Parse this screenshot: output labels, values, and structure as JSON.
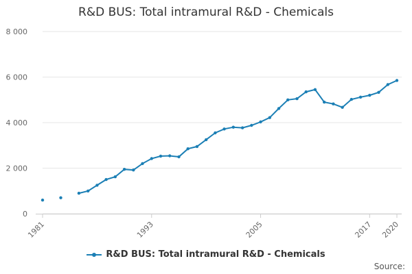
{
  "chart_data": {
    "type": "line",
    "title": "R&D BUS: Total intramural R&D - Chemicals",
    "xlabel": "",
    "ylabel": "",
    "xlim": [
      1981,
      2020
    ],
    "ylim": [
      0,
      8000
    ],
    "y_ticks": [
      0,
      2000,
      4000,
      6000,
      8000
    ],
    "y_tick_labels": [
      "0",
      "2 000",
      "4 000",
      "6 000",
      "8 000"
    ],
    "x_ticks": [
      1981,
      1993,
      2005,
      2017,
      2020
    ],
    "x_tick_labels": [
      "1981",
      "1993",
      "2005",
      "2017",
      "2020"
    ],
    "grid": true,
    "legend_position": "bottom",
    "series": [
      {
        "name": "R&D BUS: Total intramural R&D - Chemicals",
        "color": "#1b7fb5",
        "points": [
          [
            1981,
            600
          ],
          [
            1983,
            700
          ],
          [
            1985,
            900
          ],
          [
            1986,
            1000
          ],
          [
            1987,
            1250
          ],
          [
            1988,
            1500
          ],
          [
            1989,
            1620
          ],
          [
            1990,
            1950
          ],
          [
            1991,
            1920
          ],
          [
            1992,
            2200
          ],
          [
            1993,
            2420
          ],
          [
            1994,
            2530
          ],
          [
            1995,
            2540
          ],
          [
            1996,
            2500
          ],
          [
            1997,
            2850
          ],
          [
            1998,
            2950
          ],
          [
            1999,
            3250
          ],
          [
            2000,
            3550
          ],
          [
            2001,
            3720
          ],
          [
            2002,
            3800
          ],
          [
            2003,
            3770
          ],
          [
            2004,
            3880
          ],
          [
            2005,
            4030
          ],
          [
            2006,
            4220
          ],
          [
            2007,
            4620
          ],
          [
            2008,
            5000
          ],
          [
            2009,
            5050
          ],
          [
            2010,
            5350
          ],
          [
            2011,
            5450
          ],
          [
            2012,
            4900
          ],
          [
            2013,
            4820
          ],
          [
            2014,
            4670
          ],
          [
            2015,
            5020
          ],
          [
            2016,
            5120
          ],
          [
            2017,
            5200
          ],
          [
            2018,
            5330
          ],
          [
            2019,
            5670
          ],
          [
            2020,
            5850
          ]
        ],
        "segments": [
          [
            0,
            0
          ],
          [
            1,
            1
          ],
          [
            2,
            37
          ]
        ]
      }
    ]
  },
  "legend": {
    "label": "R&D BUS: Total intramural R&D - Chemicals"
  },
  "source": {
    "label": "Source:"
  }
}
